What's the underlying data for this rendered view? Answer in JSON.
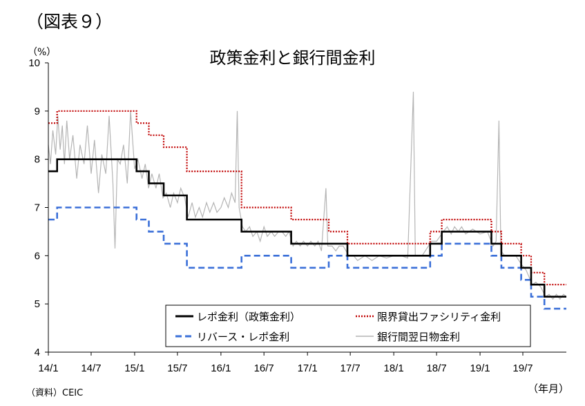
{
  "figure_label": "（図表９）",
  "unit_label": "（%）",
  "source": "（資料）CEIC",
  "x_unit": "（年月）",
  "chart_data": {
    "type": "line",
    "title": "政策金利と銀行間金利",
    "ylabel": "（%）",
    "xlabel": "（年月）",
    "ylim": [
      4,
      10
    ],
    "yticks": [
      4,
      5,
      6,
      7,
      8,
      9,
      10
    ],
    "xlim": [
      "2014-01-01",
      "2020-01-01"
    ],
    "xtick_labels": [
      "14/1",
      "14/7",
      "15/1",
      "15/7",
      "16/1",
      "16/7",
      "17/1",
      "17/7",
      "18/1",
      "18/7",
      "19/1",
      "19/7"
    ],
    "xtick_dates": [
      "2014-01-01",
      "2014-07-01",
      "2015-01-01",
      "2015-07-01",
      "2016-01-01",
      "2016-07-01",
      "2017-01-01",
      "2017-07-01",
      "2018-01-01",
      "2018-07-01",
      "2019-01-01",
      "2019-07-01"
    ],
    "legend_position": "bottom-right",
    "grid": false,
    "series": [
      {
        "name": "レポ金利（政策金利）",
        "style": "solid",
        "color": "#000000",
        "points": [
          [
            "2014-01-01",
            7.75
          ],
          [
            "2014-02-07",
            8.0
          ],
          [
            "2015-01-09",
            7.75
          ],
          [
            "2015-03-02",
            7.5
          ],
          [
            "2015-05-04",
            7.25
          ],
          [
            "2015-08-10",
            6.75
          ],
          [
            "2016-03-28",
            6.5
          ],
          [
            "2016-10-24",
            6.25
          ],
          [
            "2017-06-19",
            6.0
          ],
          [
            "2018-06-04",
            6.25
          ],
          [
            "2018-07-23",
            6.5
          ],
          [
            "2019-02-18",
            6.25
          ],
          [
            "2019-04-01",
            6.0
          ],
          [
            "2019-06-24",
            5.75
          ],
          [
            "2019-08-05",
            5.4
          ],
          [
            "2019-09-30",
            5.15
          ],
          [
            "2020-01-01",
            5.15
          ]
        ]
      },
      {
        "name": "限界貸出ファシリティ金利",
        "style": "dotted",
        "color": "#c00000",
        "points": [
          [
            "2014-01-01",
            8.75
          ],
          [
            "2014-02-07",
            9.0
          ],
          [
            "2015-01-09",
            8.75
          ],
          [
            "2015-03-02",
            8.5
          ],
          [
            "2015-05-04",
            8.25
          ],
          [
            "2015-08-10",
            7.75
          ],
          [
            "2016-03-28",
            7.0
          ],
          [
            "2016-10-24",
            6.75
          ],
          [
            "2017-04-01",
            6.5
          ],
          [
            "2017-06-19",
            6.25
          ],
          [
            "2018-06-04",
            6.5
          ],
          [
            "2018-07-23",
            6.75
          ],
          [
            "2019-02-18",
            6.5
          ],
          [
            "2019-04-01",
            6.25
          ],
          [
            "2019-06-24",
            6.0
          ],
          [
            "2019-08-05",
            5.65
          ],
          [
            "2019-09-30",
            5.4
          ],
          [
            "2020-01-01",
            5.4
          ]
        ]
      },
      {
        "name": "リバース・レポ金利",
        "style": "dashed",
        "color": "#3a6fd8",
        "points": [
          [
            "2014-01-01",
            6.75
          ],
          [
            "2014-02-07",
            7.0
          ],
          [
            "2015-01-09",
            6.75
          ],
          [
            "2015-03-02",
            6.5
          ],
          [
            "2015-05-04",
            6.25
          ],
          [
            "2015-08-10",
            5.75
          ],
          [
            "2016-03-28",
            6.0
          ],
          [
            "2016-10-24",
            5.75
          ],
          [
            "2017-04-01",
            6.0
          ],
          [
            "2017-06-19",
            5.75
          ],
          [
            "2018-06-04",
            6.0
          ],
          [
            "2018-07-23",
            6.25
          ],
          [
            "2019-02-18",
            6.0
          ],
          [
            "2019-04-01",
            5.75
          ],
          [
            "2019-06-24",
            5.5
          ],
          [
            "2019-08-05",
            5.15
          ],
          [
            "2019-09-30",
            4.9
          ],
          [
            "2020-01-01",
            4.9
          ]
        ]
      },
      {
        "name": "銀行間翌日物金利",
        "style": "thin",
        "color": "#b4b4b4",
        "points": [
          [
            "2014-01-01",
            8.3
          ],
          [
            "2014-01-10",
            7.9
          ],
          [
            "2014-01-20",
            8.6
          ],
          [
            "2014-02-01",
            8.1
          ],
          [
            "2014-02-10",
            8.9
          ],
          [
            "2014-02-20",
            8.2
          ],
          [
            "2014-03-01",
            8.7
          ],
          [
            "2014-03-10",
            7.9
          ],
          [
            "2014-03-20",
            8.8
          ],
          [
            "2014-04-01",
            8.0
          ],
          [
            "2014-04-15",
            8.5
          ],
          [
            "2014-05-01",
            7.6
          ],
          [
            "2014-05-15",
            8.3
          ],
          [
            "2014-06-01",
            7.9
          ],
          [
            "2014-06-15",
            8.7
          ],
          [
            "2014-07-01",
            7.7
          ],
          [
            "2014-07-15",
            8.4
          ],
          [
            "2014-08-01",
            7.3
          ],
          [
            "2014-08-15",
            8.1
          ],
          [
            "2014-09-01",
            7.7
          ],
          [
            "2014-09-15",
            8.9
          ],
          [
            "2014-10-01",
            7.5
          ],
          [
            "2014-10-10",
            6.15
          ],
          [
            "2014-10-20",
            8.0
          ],
          [
            "2014-11-01",
            7.9
          ],
          [
            "2014-11-15",
            8.3
          ],
          [
            "2014-12-01",
            7.5
          ],
          [
            "2014-12-15",
            9.0
          ],
          [
            "2015-01-01",
            7.8
          ],
          [
            "2015-01-15",
            8.0
          ],
          [
            "2015-02-01",
            7.6
          ],
          [
            "2015-02-15",
            7.9
          ],
          [
            "2015-03-01",
            7.4
          ],
          [
            "2015-03-15",
            7.7
          ],
          [
            "2015-04-01",
            7.4
          ],
          [
            "2015-04-15",
            7.7
          ],
          [
            "2015-05-01",
            7.2
          ],
          [
            "2015-05-15",
            7.3
          ],
          [
            "2015-06-01",
            7.0
          ],
          [
            "2015-06-15",
            7.3
          ],
          [
            "2015-07-01",
            7.1
          ],
          [
            "2015-07-15",
            7.4
          ],
          [
            "2015-08-01",
            7.2
          ],
          [
            "2015-08-15",
            6.8
          ],
          [
            "2015-09-01",
            7.1
          ],
          [
            "2015-09-15",
            6.8
          ],
          [
            "2015-10-01",
            7.0
          ],
          [
            "2015-10-15",
            6.8
          ],
          [
            "2015-11-01",
            7.1
          ],
          [
            "2015-11-15",
            6.9
          ],
          [
            "2015-12-01",
            7.1
          ],
          [
            "2015-12-15",
            6.9
          ],
          [
            "2016-01-01",
            7.0
          ],
          [
            "2016-01-15",
            7.2
          ],
          [
            "2016-02-01",
            7.0
          ],
          [
            "2016-02-15",
            7.3
          ],
          [
            "2016-03-01",
            7.1
          ],
          [
            "2016-03-10",
            9.0
          ],
          [
            "2016-03-18",
            7.0
          ],
          [
            "2016-04-01",
            6.6
          ],
          [
            "2016-04-15",
            6.5
          ],
          [
            "2016-05-01",
            6.6
          ],
          [
            "2016-05-15",
            6.4
          ],
          [
            "2016-06-01",
            6.5
          ],
          [
            "2016-06-15",
            6.3
          ],
          [
            "2016-07-01",
            6.6
          ],
          [
            "2016-07-15",
            6.4
          ],
          [
            "2016-08-01",
            6.5
          ],
          [
            "2016-08-15",
            6.4
          ],
          [
            "2016-09-01",
            6.5
          ],
          [
            "2016-09-15",
            6.5
          ],
          [
            "2016-10-01",
            6.4
          ],
          [
            "2016-10-15",
            6.5
          ],
          [
            "2016-11-01",
            6.2
          ],
          [
            "2016-11-15",
            6.3
          ],
          [
            "2016-12-01",
            6.2
          ],
          [
            "2016-12-15",
            6.3
          ],
          [
            "2017-01-01",
            6.2
          ],
          [
            "2017-01-15",
            6.3
          ],
          [
            "2017-02-01",
            6.2
          ],
          [
            "2017-02-15",
            6.3
          ],
          [
            "2017-03-01",
            6.1
          ],
          [
            "2017-03-20",
            7.4
          ],
          [
            "2017-03-28",
            6.2
          ],
          [
            "2017-04-15",
            6.2
          ],
          [
            "2017-05-01",
            6.1
          ],
          [
            "2017-05-15",
            6.2
          ],
          [
            "2017-06-01",
            6.2
          ],
          [
            "2017-06-25",
            6.0
          ],
          [
            "2017-07-15",
            6.0
          ],
          [
            "2017-08-01",
            5.9
          ],
          [
            "2017-09-01",
            6.0
          ],
          [
            "2017-10-01",
            5.9
          ],
          [
            "2017-11-01",
            6.0
          ],
          [
            "2017-12-01",
            5.95
          ],
          [
            "2018-01-01",
            6.0
          ],
          [
            "2018-02-01",
            6.0
          ],
          [
            "2018-03-01",
            5.95
          ],
          [
            "2018-03-25",
            9.4
          ],
          [
            "2018-04-02",
            6.0
          ],
          [
            "2018-05-01",
            6.0
          ],
          [
            "2018-06-10",
            6.3
          ],
          [
            "2018-07-01",
            6.3
          ],
          [
            "2018-07-30",
            6.5
          ],
          [
            "2018-08-15",
            6.6
          ],
          [
            "2018-09-01",
            6.45
          ],
          [
            "2018-09-15",
            6.6
          ],
          [
            "2018-10-01",
            6.5
          ],
          [
            "2018-10-15",
            6.6
          ],
          [
            "2018-11-01",
            6.45
          ],
          [
            "2018-12-01",
            6.55
          ],
          [
            "2019-01-01",
            6.45
          ],
          [
            "2019-02-01",
            6.5
          ],
          [
            "2019-02-25",
            6.2
          ],
          [
            "2019-03-10",
            6.3
          ],
          [
            "2019-03-22",
            8.8
          ],
          [
            "2019-03-30",
            6.1
          ],
          [
            "2019-04-15",
            6.0
          ],
          [
            "2019-05-01",
            6.0
          ],
          [
            "2019-06-01",
            6.0
          ],
          [
            "2019-06-28",
            5.8
          ],
          [
            "2019-07-15",
            5.7
          ],
          [
            "2019-08-10",
            5.4
          ],
          [
            "2019-08-25",
            5.45
          ],
          [
            "2019-09-15",
            5.35
          ],
          [
            "2019-10-05",
            5.15
          ],
          [
            "2019-10-20",
            5.2
          ],
          [
            "2019-11-05",
            5.1
          ],
          [
            "2019-11-20",
            5.2
          ],
          [
            "2019-12-05",
            5.1
          ],
          [
            "2019-12-20",
            5.2
          ],
          [
            "2020-01-01",
            5.15
          ]
        ]
      }
    ]
  }
}
